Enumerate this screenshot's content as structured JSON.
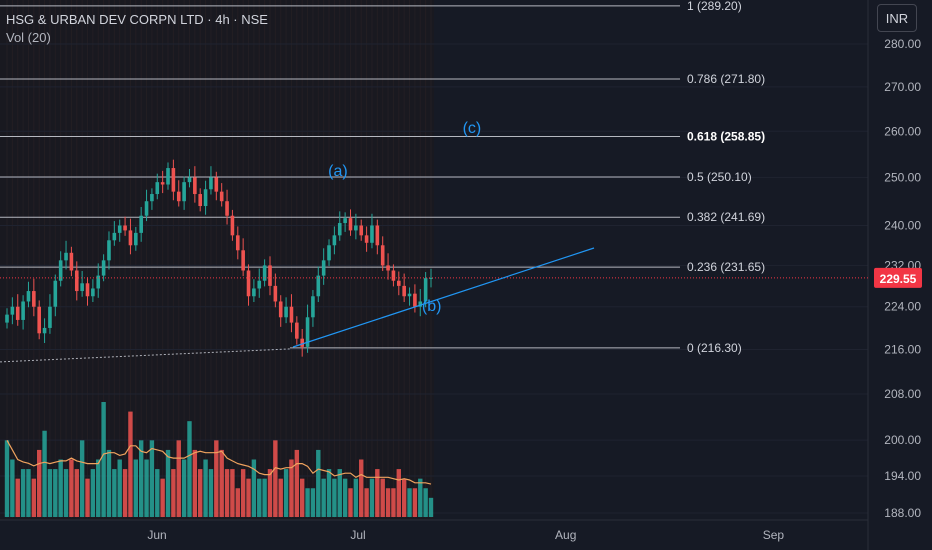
{
  "legend": {
    "symbol": "HSG & URBAN DEV CORPN LTD · 4h · NSE",
    "volume": "Vol (20)"
  },
  "currency": "INR",
  "last_price": "229.55",
  "colors": {
    "up": "#26a69a",
    "down": "#ef5350",
    "fib_line": "#d1d4dc",
    "trendline": "#2196f3",
    "wave_label": "#2196f3",
    "volume_ma": "#f0a35e",
    "price_badge": "#f23645"
  },
  "chart_data": {
    "type": "candlestick",
    "x_axis": {
      "labels": [
        "Jun",
        "Jul",
        "Aug",
        "Sep"
      ]
    },
    "y_axis": {
      "labels": [
        "280.00",
        "270.00",
        "260.00",
        "250.00",
        "240.00",
        "232.00",
        "224.00",
        "216.00",
        "208.00",
        "200.00",
        "194.00",
        "188.00"
      ],
      "scale": "log"
    },
    "fibonacci": [
      {
        "label": "1 (289.20)",
        "level": 1,
        "price": 289.2
      },
      {
        "label": "0.786 (271.80)",
        "level": 0.786,
        "price": 271.8
      },
      {
        "label": "0.618 (258.85)",
        "level": 0.618,
        "price": 258.85
      },
      {
        "label": "0.5 (250.10)",
        "level": 0.5,
        "price": 250.1
      },
      {
        "label": "0.382 (241.69)",
        "level": 0.382,
        "price": 241.69
      },
      {
        "label": "0.236 (231.65)",
        "level": 0.236,
        "price": 231.65
      },
      {
        "label": "0 (216.30)",
        "level": 0,
        "price": 216.3
      }
    ],
    "wave_labels": [
      {
        "label": "(a)",
        "date": "2024-06-28",
        "price": 250.3
      },
      {
        "label": "(b)",
        "date": "2024-07-12",
        "price": 223.2
      },
      {
        "label": "(c)",
        "date": "2024-07-18",
        "price": 259.6
      }
    ],
    "closes": [
      222.5,
      224.0,
      221.5,
      225.0,
      227.0,
      224.0,
      219.0,
      220.0,
      224.0,
      229.0,
      233.0,
      234.5,
      231.0,
      227.0,
      228.5,
      226.0,
      227.5,
      230.0,
      233.0,
      237.0,
      238.5,
      240.0,
      239.0,
      236.0,
      238.5,
      242.0,
      245.0,
      246.5,
      249.0,
      248.5,
      252.0,
      247.0,
      245.0,
      249.0,
      250.0,
      246.5,
      244.0,
      247.5,
      250.0,
      247.0,
      245.0,
      242.0,
      238.0,
      235.0,
      231.0,
      226.0,
      227.5,
      229.0,
      232.0,
      228.0,
      225.0,
      222.0,
      224.0,
      221.0,
      218.0,
      216.5,
      222.0,
      226.0,
      230.0,
      233.0,
      236.0,
      238.0,
      240.5,
      241.5,
      239.0,
      240.0,
      238.0,
      236.5,
      240.0,
      236.0,
      232.0,
      231.0,
      229.0,
      228.0,
      226.0,
      226.5,
      224.0,
      225.0,
      229.5,
      229.55
    ],
    "volumes": [
      8,
      6,
      4,
      5,
      5,
      4,
      7,
      9,
      5,
      5,
      6,
      5,
      6,
      5,
      8,
      4,
      5,
      6,
      12,
      7,
      5,
      6,
      5,
      11,
      6,
      8,
      6,
      8,
      5,
      4,
      7,
      5,
      8,
      6,
      10,
      7,
      5,
      6,
      5,
      8,
      7,
      5,
      5,
      3,
      5,
      4,
      6,
      4,
      4,
      5,
      8,
      4,
      5,
      6,
      7,
      4,
      3,
      3,
      7,
      4,
      5,
      4,
      5,
      4,
      3,
      4,
      6,
      3,
      4,
      5,
      4,
      3,
      3,
      5,
      4,
      3,
      3,
      4,
      3,
      2
    ]
  }
}
